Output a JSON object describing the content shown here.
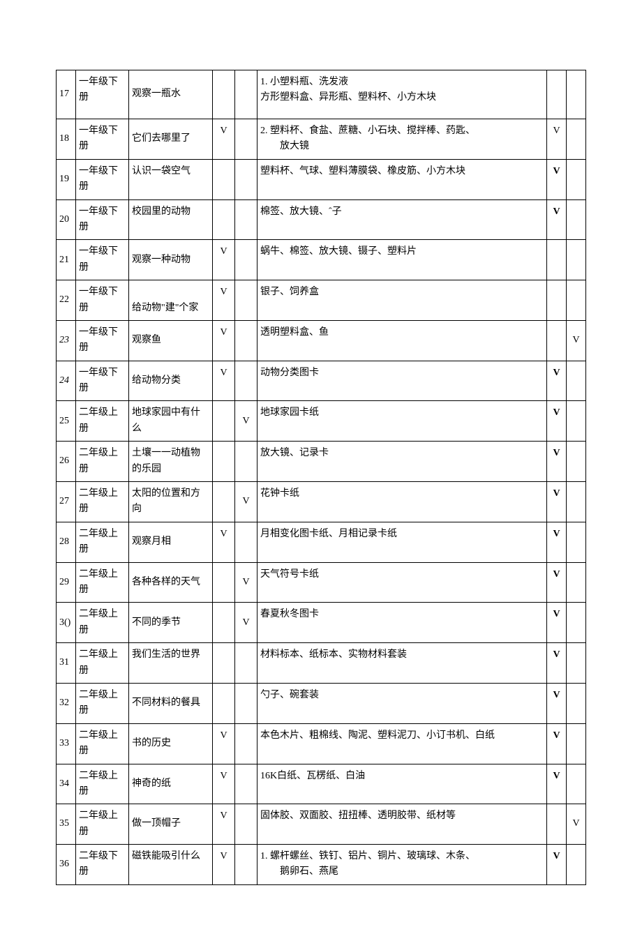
{
  "rows": [
    {
      "num": "17",
      "numItalic": false,
      "book": "一年级下册",
      "bookPos": "top",
      "title": "观察一瓶水",
      "titlePos": "mid",
      "c4": "",
      "c5": "",
      "mat": "1. 小塑料瓶、洗发液\n方形塑料盒、异形瓶、塑料杯、小方木块",
      "c7": "",
      "c7bold": false,
      "c8": "",
      "tall": true
    },
    {
      "num": "18",
      "numItalic": false,
      "book": "一年级下册",
      "bookPos": "bottom",
      "title": "它们去哪里了",
      "titlePos": "mid",
      "c4": "V",
      "c5": "",
      "mat": "2. 塑料杯、食盐、蔗糖、小石块、搅拌棒、药匙、\n　　放大镜",
      "c7": "V",
      "c7bold": false,
      "c8": "",
      "tall": false
    },
    {
      "num": "19",
      "numItalic": false,
      "book": "一年级下册",
      "bookPos": "bottom",
      "title": "认识一袋空气",
      "titlePos": "top",
      "c4": "",
      "c5": "",
      "mat": "塑料杯、气球、塑料薄膜袋、橡皮筋、小方木块",
      "c7": "V",
      "c7bold": true,
      "c8": "",
      "tall": false
    },
    {
      "num": "20",
      "numItalic": false,
      "book": "一年级下册",
      "bookPos": "bottom",
      "title": "校园里的动物",
      "titlePos": "top",
      "c4": "",
      "c5": "",
      "mat": "棉签、放大镜、ˆ子",
      "c7": "V",
      "c7bold": true,
      "c8": "",
      "tall": false
    },
    {
      "num": "21",
      "numItalic": false,
      "book": "一年级下册",
      "bookPos": "bottom",
      "title": "观察一种动物",
      "titlePos": "mid",
      "c4": "V",
      "c5": "",
      "mat": "蜗牛、棉签、放大镜、镊子、塑料片",
      "c7": "",
      "c7bold": false,
      "c8": "",
      "tall": false
    },
    {
      "num": "22",
      "numItalic": false,
      "book": "一年级下册",
      "bookPos": "bottom",
      "title": "给动物\"建\"个家",
      "titlePos": "bottom",
      "c4": "V",
      "c5": "",
      "mat": "银子、饲养盒",
      "c7": "",
      "c7bold": false,
      "c8": "",
      "tall": false
    },
    {
      "num": "23",
      "numItalic": true,
      "book": "一年级下册",
      "bookPos": "bottom",
      "title": "观察鱼",
      "titlePos": "mid",
      "c4": "V",
      "c5": "",
      "mat": "透明塑料盒、鱼",
      "c7": "",
      "c7bold": false,
      "c8": "V",
      "tall": false
    },
    {
      "num": "24",
      "numItalic": true,
      "book": "一年级下册",
      "bookPos": "bottom",
      "title": "给动物分类",
      "titlePos": "mid",
      "c4": "V",
      "c5": "",
      "mat": "动物分类图卡",
      "c7": "V",
      "c7bold": true,
      "c8": "",
      "tall": false
    },
    {
      "num": "25",
      "numItalic": false,
      "book": "二年级上册",
      "bookPos": "bottom",
      "title": "地球家园中有什么",
      "titlePos": "top",
      "c4": "",
      "c5": "V",
      "mat": "地球家园卡纸",
      "c7": "V",
      "c7bold": true,
      "c8": "",
      "tall": false
    },
    {
      "num": "26",
      "numItalic": false,
      "book": "二年级上册",
      "bookPos": "top",
      "title": "土壤一一动植物的乐园",
      "titlePos": "top",
      "c4": "",
      "c5": "",
      "mat": "放大镜、记录卡",
      "c7": "V",
      "c7bold": true,
      "c8": "",
      "tall": false
    },
    {
      "num": "27",
      "numItalic": false,
      "book": "二年级上册",
      "bookPos": "bottom",
      "title": "太阳的位置和方向",
      "titlePos": "bottom",
      "c4": "",
      "c5": "V",
      "mat": "花钟卡纸",
      "c7": "V",
      "c7bold": true,
      "c8": "",
      "tall": false
    },
    {
      "num": "28",
      "numItalic": false,
      "book": "二年级上册",
      "bookPos": "top",
      "title": "观察月相",
      "titlePos": "mid",
      "c4": "V",
      "c5": "",
      "mat": "月相变化图卡纸、月相记录卡纸",
      "c7": "V",
      "c7bold": true,
      "c8": "",
      "tall": false
    },
    {
      "num": "29",
      "numItalic": false,
      "book": "二年级上册",
      "bookPos": "top",
      "title": "各种各样的天气",
      "titlePos": "mid",
      "c4": "",
      "c5": "V",
      "mat": "天气符号卡纸",
      "c7": "V",
      "c7bold": true,
      "c8": "",
      "tall": false
    },
    {
      "num": "3()",
      "numItalic": false,
      "book": "二年级上册",
      "bookPos": "bottom",
      "title": "不同的季节",
      "titlePos": "mid",
      "c4": "",
      "c5": "V",
      "mat": "春夏秋冬图卡",
      "c7": "V",
      "c7bold": true,
      "c8": "",
      "tall": false
    },
    {
      "num": "31",
      "numItalic": false,
      "book": "二年级上册",
      "bookPos": "bottom",
      "title": "我们生活的世界",
      "titlePos": "top",
      "c4": "",
      "c5": "",
      "mat": "材料标本、纸标本、实物材料套装",
      "c7": "V",
      "c7bold": true,
      "c8": "",
      "tall": false
    },
    {
      "num": "32",
      "numItalic": false,
      "book": "二年级上册",
      "bookPos": "top",
      "title": "不同材料的餐具",
      "titlePos": "mid",
      "c4": "",
      "c5": "",
      "mat": "勺子、碗套装",
      "c7": "V",
      "c7bold": true,
      "c8": "",
      "tall": false
    },
    {
      "num": "33",
      "numItalic": false,
      "book": "二年级上册",
      "bookPos": "top",
      "title": "书的历史",
      "titlePos": "mid",
      "c4": "V",
      "c5": "",
      "mat": "本色木片、粗棉线、陶泥、塑料泥刀、小订书机、白纸",
      "c7": "V",
      "c7bold": true,
      "c8": "",
      "tall": false
    },
    {
      "num": "34",
      "numItalic": false,
      "book": "二年级上册",
      "bookPos": "top",
      "title": "神奇的纸",
      "titlePos": "mid",
      "c4": "V",
      "c5": "",
      "mat": "16K白纸、瓦楞纸、白油",
      "c7": "V",
      "c7bold": true,
      "c8": "",
      "tall": false
    },
    {
      "num": "35",
      "numItalic": false,
      "book": "二年级上册",
      "bookPos": "top",
      "title": "做一顶帽子",
      "titlePos": "mid",
      "c4": "V",
      "c5": "",
      "mat": "固体胶、双面胶、扭扭棒、透明胶带、纸材等",
      "c7": "",
      "c7bold": false,
      "c8": "V",
      "tall": false
    },
    {
      "num": "36",
      "numItalic": false,
      "book": "二年级下册",
      "bookPos": "top",
      "title": "磁铁能吸引什么",
      "titlePos": "top",
      "c4": "V",
      "c5": "",
      "mat": "1. 螺杆螺丝、铁钉、铝片、铜片、玻璃球、木条、\n　　鹅卵石、燕尾",
      "c7": "V",
      "c7bold": true,
      "c8": "",
      "tall": false
    }
  ]
}
